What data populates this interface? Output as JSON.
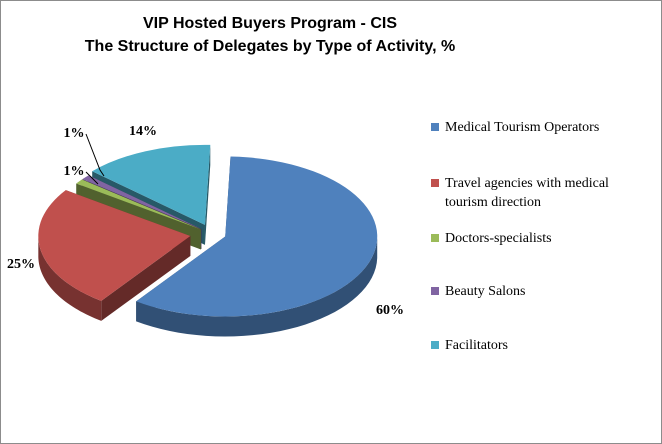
{
  "chart_data": {
    "type": "pie",
    "title": "VIP Hosted Buyers Program - CIS",
    "subtitle": "The Structure of Delegates by Type of Activity, %",
    "slices": [
      {
        "label": "Medical Tourism Operators",
        "value": 60,
        "value_label": "60%",
        "color": "#4f81bd"
      },
      {
        "label": "Travel agencies with medical tourism direction",
        "value": 25,
        "value_label": "25%",
        "color": "#c0504d"
      },
      {
        "label": "Doctors-specialists",
        "value": 1,
        "value_label": "1%",
        "color": "#9bbb59"
      },
      {
        "label": "Beauty Salons",
        "value": 1,
        "value_label": "1%",
        "color": "#8064a2"
      },
      {
        "label": "Facilitators",
        "value": 14,
        "value_label": "14%",
        "color": "#4bacc6"
      }
    ],
    "legend_position": "right",
    "style": "3D exploded pie"
  }
}
